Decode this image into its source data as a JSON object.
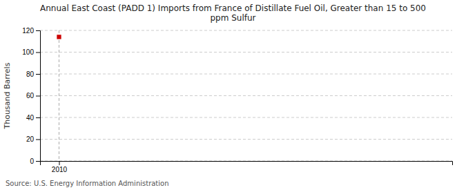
{
  "chart_data": {
    "type": "scatter",
    "title": "Annual East Coast (PADD 1) Imports from France of Distillate Fuel Oil, Greater than 15 to 500\nppm Sulfur",
    "y_label": "Thousand Barrels",
    "source": "Source: U.S. Energy Information Administration",
    "x": [
      2010
    ],
    "values": [
      114
    ],
    "color": "#cc0000",
    "marker": "square",
    "xlim": [
      2009.3,
      2024.5
    ],
    "xticks": [
      2010
    ],
    "ylim": [
      0,
      120
    ],
    "yticks": [
      0,
      20,
      40,
      60,
      80,
      100,
      120
    ],
    "grid": true
  }
}
